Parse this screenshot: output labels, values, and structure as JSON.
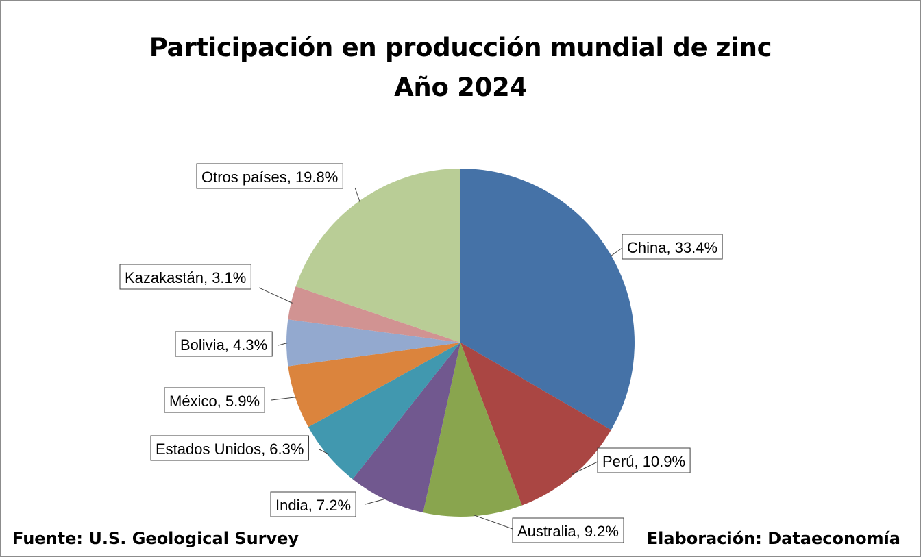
{
  "chart_data": {
    "type": "pie",
    "title": "Participación en producción mundial de zinc",
    "subtitle": "Año 2024",
    "slices": [
      {
        "label": "China",
        "value": 33.4,
        "color": "#4572A7"
      },
      {
        "label": "Perú",
        "value": 10.9,
        "color": "#AA4643"
      },
      {
        "label": "Australia",
        "value": 9.2,
        "color": "#89A54E"
      },
      {
        "label": "India",
        "value": 7.2,
        "color": "#71588F"
      },
      {
        "label": "Estados Unidos",
        "value": 6.3,
        "color": "#4198AF"
      },
      {
        "label": "México",
        "value": 5.9,
        "color": "#DB843D"
      },
      {
        "label": "Bolivia",
        "value": 4.3,
        "color": "#93A9CF"
      },
      {
        "label": "Kazakastán",
        "value": 3.1,
        "color": "#D19392"
      },
      {
        "label": "Otros países",
        "value": 19.8,
        "color": "#B9CD96"
      }
    ],
    "data_labels": [
      "China, 33.4%",
      "Perú, 10.9%",
      "Australia, 9.2%",
      "India, 7.2%",
      "Estados Unidos, 6.3%",
      "México, 5.9%",
      "Bolivia, 4.3%",
      "Kazakastán, 3.1%",
      "Otros países, 19.8%"
    ],
    "start_angle": "12 o'clock",
    "direction": "clockwise",
    "legend": "none"
  },
  "footer": {
    "source": "Fuente: U.S. Geological Survey",
    "credit": "Elaboración: Dataeconomía"
  }
}
